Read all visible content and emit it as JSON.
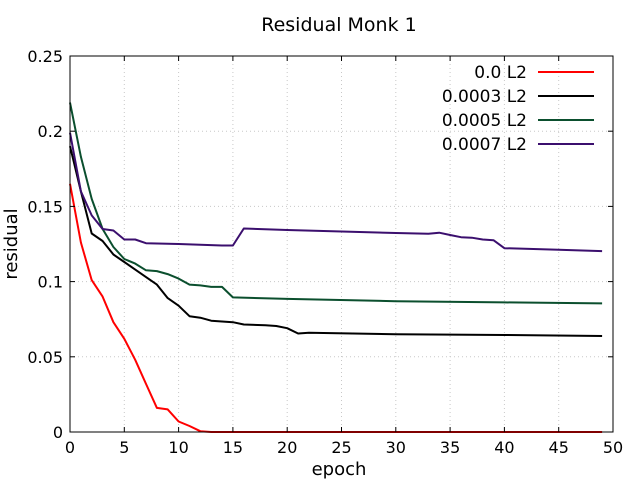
{
  "chart_data": {
    "type": "line",
    "title": "Residual Monk 1",
    "xlabel": "epoch",
    "ylabel": "residual",
    "xlim": [
      0,
      50
    ],
    "ylim": [
      0,
      0.25
    ],
    "x_ticks": [
      0,
      5,
      10,
      15,
      20,
      25,
      30,
      35,
      40,
      45,
      50
    ],
    "y_ticks": [
      0,
      0.05,
      0.1,
      0.15,
      0.2,
      0.25
    ],
    "x_tick_labels": [
      "0",
      "5",
      "10",
      "15",
      "20",
      "25",
      "30",
      "35",
      "40",
      "45",
      "50"
    ],
    "y_tick_labels": [
      "0",
      "0.05",
      "0.1",
      "0.15",
      "0.2",
      "0.25"
    ],
    "grid": true,
    "legend_position": "top-right",
    "series": [
      {
        "name": "0.0 L2",
        "color": "#ff0000",
        "points": [
          [
            0,
            0.165
          ],
          [
            1,
            0.126
          ],
          [
            2,
            0.101
          ],
          [
            3,
            0.09
          ],
          [
            4,
            0.073
          ],
          [
            5,
            0.062
          ],
          [
            6,
            0.048
          ],
          [
            7,
            0.032
          ],
          [
            8,
            0.016
          ],
          [
            9,
            0.015
          ],
          [
            10,
            0.007
          ],
          [
            11,
            0.004
          ],
          [
            12,
            0.0005
          ],
          [
            13,
            0
          ],
          [
            15,
            0
          ],
          [
            20,
            0
          ],
          [
            25,
            0
          ],
          [
            30,
            0
          ],
          [
            35,
            0
          ],
          [
            40,
            0
          ],
          [
            45,
            0
          ],
          [
            49,
            0
          ]
        ]
      },
      {
        "name": "0.0003 L2",
        "color": "#000000",
        "points": [
          [
            0,
            0.19
          ],
          [
            1,
            0.16
          ],
          [
            2,
            0.132
          ],
          [
            3,
            0.127
          ],
          [
            4,
            0.118
          ],
          [
            5,
            0.113
          ],
          [
            6,
            0.108
          ],
          [
            7,
            0.103
          ],
          [
            8,
            0.098
          ],
          [
            9,
            0.089
          ],
          [
            10,
            0.084
          ],
          [
            11,
            0.077
          ],
          [
            12,
            0.076
          ],
          [
            13,
            0.074
          ],
          [
            14,
            0.0735
          ],
          [
            15,
            0.073
          ],
          [
            16,
            0.0715
          ],
          [
            18,
            0.071
          ],
          [
            19,
            0.0705
          ],
          [
            20,
            0.069
          ],
          [
            21,
            0.0655
          ],
          [
            22,
            0.066
          ],
          [
            30,
            0.065
          ],
          [
            40,
            0.0645
          ],
          [
            49,
            0.0638
          ]
        ]
      },
      {
        "name": "0.0005 L2",
        "color": "#0b4f2e",
        "points": [
          [
            0,
            0.219
          ],
          [
            1,
            0.183
          ],
          [
            2,
            0.155
          ],
          [
            3,
            0.135
          ],
          [
            4,
            0.123
          ],
          [
            5,
            0.115
          ],
          [
            6,
            0.112
          ],
          [
            7,
            0.1075
          ],
          [
            8,
            0.107
          ],
          [
            9,
            0.105
          ],
          [
            10,
            0.102
          ],
          [
            11,
            0.098
          ],
          [
            12,
            0.0975
          ],
          [
            13,
            0.0965
          ],
          [
            14,
            0.0965
          ],
          [
            15,
            0.0895
          ],
          [
            20,
            0.0885
          ],
          [
            30,
            0.087
          ],
          [
            40,
            0.0862
          ],
          [
            49,
            0.0855
          ]
        ]
      },
      {
        "name": "0.0007 L2",
        "color": "#3b0f6e",
        "points": [
          [
            0,
            0.199
          ],
          [
            1,
            0.16
          ],
          [
            2,
            0.144
          ],
          [
            3,
            0.135
          ],
          [
            4,
            0.134
          ],
          [
            5,
            0.128
          ],
          [
            6,
            0.128
          ],
          [
            7,
            0.1255
          ],
          [
            10,
            0.125
          ],
          [
            14,
            0.124
          ],
          [
            15,
            0.124
          ],
          [
            16,
            0.1353
          ],
          [
            20,
            0.1343
          ],
          [
            25,
            0.1333
          ],
          [
            30,
            0.1323
          ],
          [
            33,
            0.1318
          ],
          [
            34,
            0.1325
          ],
          [
            35,
            0.131
          ],
          [
            36,
            0.1295
          ],
          [
            37,
            0.1292
          ],
          [
            38,
            0.128
          ],
          [
            39,
            0.1275
          ],
          [
            40,
            0.1222
          ],
          [
            45,
            0.1212
          ],
          [
            49,
            0.1203
          ]
        ]
      }
    ]
  }
}
